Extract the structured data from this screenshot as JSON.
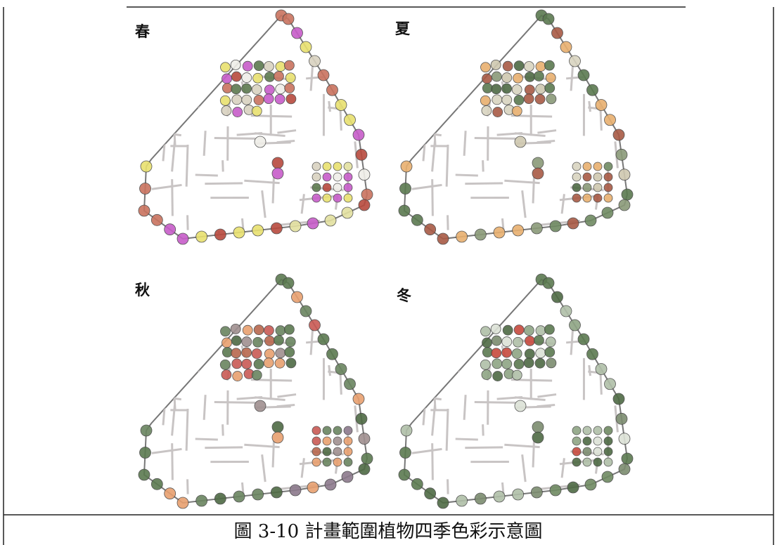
{
  "panels": [
    {
      "label": "春"
    },
    {
      "label": "夏"
    },
    {
      "label": "秋"
    },
    {
      "label": "冬"
    }
  ],
  "caption": "圖 3-10 計畫範圍植物四季色彩示意圖"
}
